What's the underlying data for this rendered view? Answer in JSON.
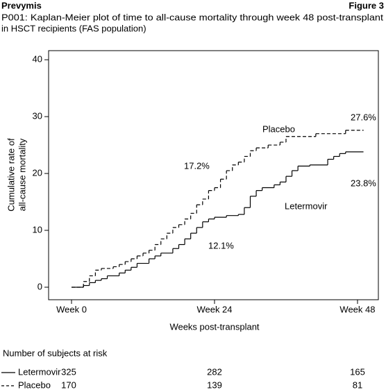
{
  "header": {
    "left": "Prevymis",
    "right": "Figure 3"
  },
  "chart_data": {
    "type": "step",
    "title": [
      "P001: Kaplan-Meier plot of time to all-cause mortality through week 48 post-transplant",
      "in HSCT recipients (FAS population)"
    ],
    "xlabel": "Weeks post-transplant",
    "ylabel": [
      "Cumulative rate of",
      "all-cause mortality"
    ],
    "xlim": [
      -3.85,
      51.5
    ],
    "ylim": [
      -2.2,
      41.6
    ],
    "xticks": [
      {
        "value": 0,
        "label": "Week 0"
      },
      {
        "value": 24,
        "label": "Week 24"
      },
      {
        "value": 48,
        "label": "Week 48"
      }
    ],
    "yticks": [
      0,
      10,
      20,
      30,
      40
    ],
    "series": [
      {
        "name": "Letermovir",
        "color": "#000000",
        "line_style": "solid",
        "x": [
          0,
          2,
          3,
          4,
          5,
          6,
          8,
          9,
          10,
          11,
          13,
          14,
          15,
          17,
          18,
          19,
          20,
          21,
          22,
          23,
          24,
          26,
          28,
          29,
          30,
          31,
          32,
          34,
          35,
          36,
          37,
          38,
          40,
          43,
          44,
          45,
          46,
          49
        ],
        "values": [
          0,
          0.3,
          0.8,
          1.2,
          1.5,
          2,
          2.5,
          3,
          3.5,
          4.2,
          5,
          5.5,
          6,
          6.8,
          7.5,
          8.5,
          9.5,
          10.5,
          11.5,
          12,
          12.3,
          12.6,
          12.8,
          14,
          16,
          17,
          17.5,
          18,
          18.5,
          19.5,
          20.5,
          21.3,
          21.5,
          22.5,
          23,
          23.5,
          23.8,
          23.8
        ]
      },
      {
        "name": "Placebo",
        "color": "#000000",
        "line_style": "dashed",
        "x": [
          0,
          2,
          3,
          4,
          5,
          7,
          8,
          9,
          10,
          11,
          12,
          13,
          14,
          15,
          16,
          17,
          18,
          19,
          20,
          21,
          22,
          23,
          24,
          25,
          26,
          27,
          28,
          29,
          30,
          31,
          33,
          35,
          36,
          41,
          46,
          49
        ],
        "values": [
          0,
          1,
          2,
          3,
          3.3,
          3.6,
          4,
          4.5,
          5,
          5.5,
          6,
          6.5,
          7.5,
          8.5,
          9.5,
          10.5,
          11,
          12,
          13,
          14.5,
          15.5,
          17,
          17.5,
          19,
          20.5,
          21.5,
          22,
          23,
          24,
          24.5,
          25,
          25.5,
          26.5,
          27,
          27.6,
          27.6
        ]
      }
    ],
    "annotations": [
      "27.6%",
      "23.8%",
      "17.2%",
      "12.1%",
      "Placebo",
      "Letermovir"
    ],
    "risk_table": {
      "title": "Number of subjects at risk",
      "rows": [
        {
          "name": "Letermovir",
          "counts": [
            325,
            282,
            165
          ]
        },
        {
          "name": "Placebo",
          "counts": [
            170,
            139,
            81
          ]
        }
      ]
    }
  }
}
